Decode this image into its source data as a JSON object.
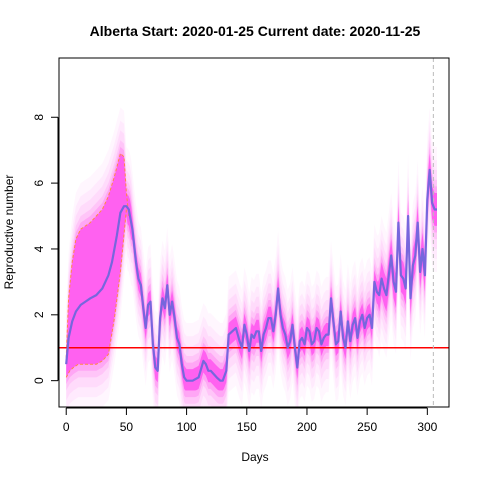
{
  "chart_data": {
    "type": "line",
    "title": "Alberta Start:  2020-01-25   Current date:  2020-11-25",
    "xlabel": "Days",
    "ylabel": "Reproductive number",
    "xlim": [
      -6,
      318
    ],
    "ylim": [
      -0.8,
      9.8
    ],
    "xticks": [
      0,
      50,
      100,
      150,
      200,
      250,
      300
    ],
    "yticks": [
      0,
      2,
      4,
      6,
      8
    ],
    "reference_line": {
      "y": 1,
      "color": "#ff0000"
    },
    "current_day_line": {
      "x": 305,
      "color": "#bbbbbb"
    },
    "colors": {
      "band": "#ff55ee",
      "median": "#7766dd",
      "interval": "#ff8844"
    },
    "series": [
      {
        "role": "median",
        "x": [
          0,
          2,
          5,
          8,
          12,
          16,
          20,
          25,
          30,
          35,
          38,
          42,
          45,
          48,
          50,
          52,
          55,
          58,
          60,
          62,
          64,
          66,
          68,
          70,
          72,
          74,
          76,
          78,
          80,
          82,
          84,
          86,
          88,
          90,
          92,
          94,
          96,
          98,
          100,
          105,
          110,
          114,
          116,
          118,
          120,
          125,
          128,
          130,
          133,
          135,
          138,
          141,
          144,
          146,
          148,
          150,
          152,
          154,
          156,
          158,
          160,
          162,
          164,
          166,
          168,
          170,
          172,
          174,
          176,
          178,
          180,
          182,
          184,
          186,
          188,
          190,
          192,
          194,
          196,
          198,
          200,
          202,
          204,
          206,
          208,
          210,
          212,
          214,
          216,
          218,
          220,
          222,
          224,
          226,
          228,
          230,
          232,
          234,
          236,
          238,
          240,
          242,
          244,
          246,
          248,
          250,
          252,
          254,
          256,
          258,
          260,
          262,
          264,
          266,
          268,
          270,
          272,
          274,
          276,
          278,
          280,
          282,
          284,
          286,
          288,
          290,
          292,
          294,
          296,
          298,
          300,
          302,
          304,
          306,
          308
        ],
        "values": [
          0.5,
          1.3,
          1.8,
          2.1,
          2.3,
          2.4,
          2.5,
          2.6,
          2.8,
          3.2,
          3.6,
          4.4,
          5.1,
          5.3,
          5.3,
          5.2,
          4.6,
          3.6,
          3.1,
          2.9,
          2.2,
          1.6,
          2.3,
          2.4,
          1.1,
          0.4,
          0.3,
          1.9,
          2.5,
          2.2,
          2.9,
          2.0,
          2.4,
          1.9,
          1.3,
          1.1,
          0.5,
          0.1,
          0.0,
          0.0,
          0.1,
          0.6,
          0.5,
          0.3,
          0.3,
          0.1,
          0.0,
          0.0,
          0.3,
          1.4,
          1.5,
          1.6,
          1.2,
          1.0,
          1.7,
          1.4,
          0.9,
          1.4,
          1.3,
          1.5,
          1.5,
          0.9,
          1.4,
          1.6,
          1.9,
          1.9,
          1.5,
          2.0,
          2.8,
          2.0,
          1.6,
          1.4,
          1.0,
          1.2,
          1.7,
          1.0,
          0.4,
          1.2,
          1.3,
          1.1,
          1.6,
          1.5,
          1.1,
          1.2,
          1.6,
          1.5,
          1.1,
          1.3,
          1.4,
          1.4,
          2.5,
          1.8,
          1.1,
          1.2,
          2.1,
          1.3,
          1.0,
          1.8,
          1.2,
          1.7,
          1.9,
          1.3,
          1.8,
          2.0,
          1.6,
          1.9,
          2.0,
          1.6,
          3.0,
          2.7,
          2.6,
          3.1,
          2.8,
          2.6,
          3.2,
          3.8,
          3.0,
          2.7,
          4.8,
          3.2,
          3.1,
          2.8,
          5.0,
          2.5,
          3.5,
          3.8,
          4.8,
          3.3,
          4.0,
          3.2,
          5.5,
          6.4,
          5.4,
          5.2,
          5.2
        ]
      },
      {
        "role": "upper_interval",
        "x": [
          0,
          2,
          5,
          8,
          12,
          16,
          20,
          25,
          30,
          35,
          40,
          45,
          48,
          50,
          52
        ],
        "values": [
          0.7,
          2.5,
          3.6,
          4.3,
          4.6,
          4.7,
          4.8,
          5.0,
          5.2,
          5.6,
          6.2,
          6.9,
          6.8,
          5.7,
          5.0
        ]
      },
      {
        "role": "lower_interval",
        "x": [
          0,
          3,
          6,
          10,
          15,
          20,
          25,
          30,
          35,
          40,
          45,
          50
        ],
        "values": [
          0.1,
          0.3,
          0.4,
          0.5,
          0.5,
          0.5,
          0.5,
          0.6,
          0.8,
          1.9,
          3.3,
          5.2
        ]
      }
    ]
  }
}
